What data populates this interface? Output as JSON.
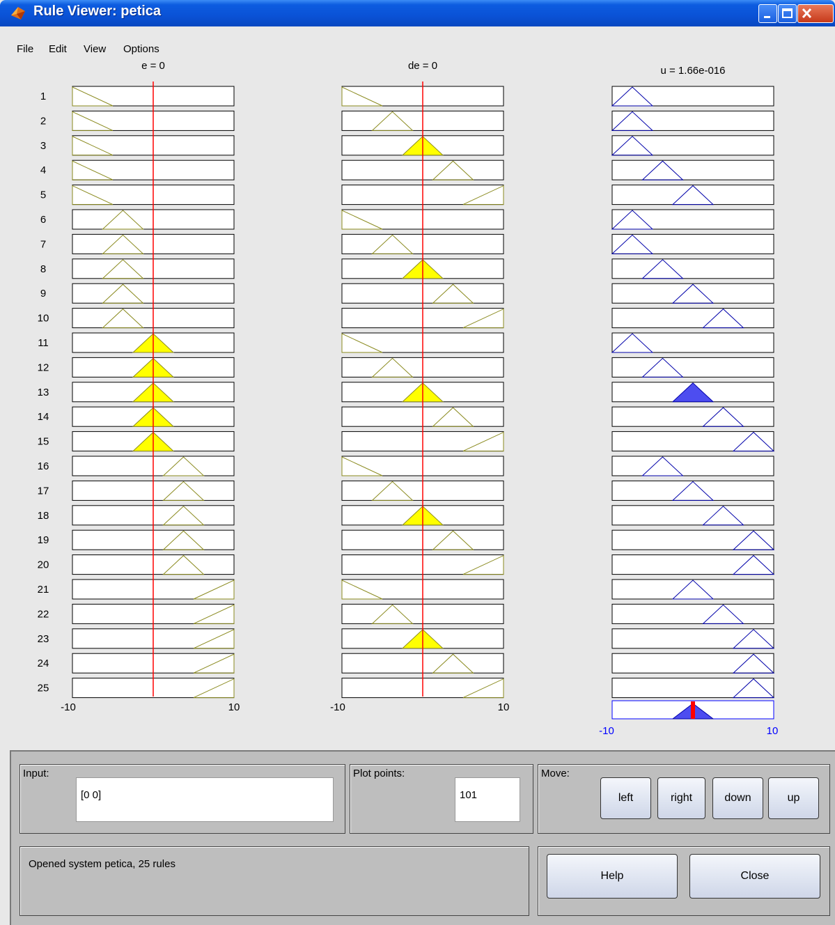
{
  "window": {
    "title": "Rule Viewer: petica"
  },
  "menu": [
    "File",
    "Edit",
    "View",
    "Options"
  ],
  "colors": {
    "input_mf_line": "#8a8a1e",
    "input_fill": "#ffff00",
    "output_mf_line": "#0000aa",
    "output_fill": "#4d4df0",
    "cursor_line": "#ff0000",
    "axis_blue": "#0000ff"
  },
  "chart_data": {
    "type": "fuzzy-rule-viewer",
    "rule_numbers": [
      "1",
      "2",
      "3",
      "4",
      "5",
      "6",
      "7",
      "8",
      "9",
      "10",
      "11",
      "12",
      "13",
      "14",
      "15",
      "16",
      "17",
      "18",
      "19",
      "20",
      "21",
      "22",
      "23",
      "24",
      "25"
    ],
    "inputs": [
      {
        "header": "e = 0",
        "range": [
          -10,
          10
        ],
        "tick_labels": [
          "-10",
          "10"
        ],
        "value": 0,
        "membership_functions": {
          "A": [
            -10,
            -10,
            -5
          ],
          "B": [
            -6.25,
            -3.75,
            -1.25
          ],
          "C": [
            -2.5,
            0,
            2.5
          ],
          "D": [
            1.25,
            3.75,
            6.25
          ],
          "E": [
            5,
            10,
            10
          ]
        },
        "rules": [
          "A",
          "A",
          "A",
          "A",
          "A",
          "B",
          "B",
          "B",
          "B",
          "B",
          "C",
          "C",
          "C",
          "C",
          "C",
          "D",
          "D",
          "D",
          "D",
          "D",
          "E",
          "E",
          "E",
          "E",
          "E"
        ]
      },
      {
        "header": "de = 0",
        "range": [
          -10,
          10
        ],
        "tick_labels": [
          "-10",
          "10"
        ],
        "value": 0,
        "membership_functions": {
          "A": [
            -10,
            -10,
            -5
          ],
          "B": [
            -6.25,
            -3.75,
            -1.25
          ],
          "C": [
            -2.5,
            0,
            2.5
          ],
          "D": [
            1.25,
            3.75,
            6.25
          ],
          "E": [
            5,
            10,
            10
          ]
        },
        "rules": [
          "A",
          "B",
          "C",
          "D",
          "E",
          "A",
          "B",
          "C",
          "D",
          "E",
          "A",
          "B",
          "C",
          "D",
          "E",
          "A",
          "B",
          "C",
          "D",
          "E",
          "A",
          "B",
          "C",
          "D",
          "E"
        ]
      }
    ],
    "output": {
      "header": "u = 1.66e-016",
      "range": [
        -10,
        10
      ],
      "tick_labels": [
        "-10",
        "10"
      ],
      "value": 1.66e-16,
      "membership_functions": {
        "NB": [
          -10,
          -7.5,
          -5
        ],
        "NS": [
          -6.25,
          -3.75,
          -1.25
        ],
        "Z": [
          -2.5,
          0,
          2.5
        ],
        "PS": [
          1.25,
          3.75,
          6.25
        ],
        "PB": [
          5,
          7.5,
          10
        ]
      },
      "rules": [
        "NB",
        "NB",
        "NB",
        "NS",
        "Z",
        "NB",
        "NB",
        "NS",
        "Z",
        "PS",
        "NB",
        "NS",
        "Z",
        "PS",
        "PB",
        "NS",
        "Z",
        "PS",
        "PB",
        "PB",
        "Z",
        "PS",
        "PB",
        "PB",
        "PB"
      ],
      "firing_strength": [
        0,
        0,
        0,
        0,
        0,
        0,
        0,
        0,
        0,
        0,
        0,
        0,
        1,
        0,
        0,
        0,
        0,
        0,
        0,
        0,
        0,
        0,
        0,
        0,
        0
      ]
    }
  },
  "controls": {
    "input_label": "Input:",
    "input_value": "[0 0]",
    "plot_points_label": "Plot points:",
    "plot_points_value": "101",
    "move_label": "Move:",
    "left_label": "left",
    "right_label": "right",
    "down_label": "down",
    "up_label": "up",
    "help_label": "Help",
    "close_label": "Close",
    "status": "Opened system petica, 25 rules"
  }
}
